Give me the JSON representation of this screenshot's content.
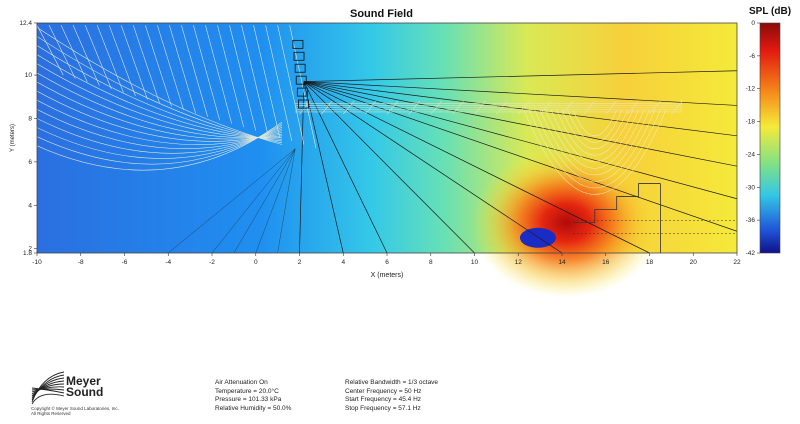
{
  "chart_data": {
    "type": "heatmap",
    "title": "Sound Field",
    "xlabel": "X (meters)",
    "ylabel": "Y (meters)",
    "xlim": [
      -10,
      22
    ],
    "ylim": [
      1.8,
      12.4
    ],
    "x_ticks": [
      "-10",
      "-8",
      "-6",
      "-4",
      "-2",
      "0",
      "2",
      "4",
      "6",
      "8",
      "10",
      "12",
      "14",
      "16",
      "18",
      "20",
      "22"
    ],
    "y_ticks": [
      "12.4",
      "10",
      "8",
      "6",
      "4",
      "2",
      "1.8"
    ],
    "colorbar": {
      "title": "SPL (dB)",
      "ticks": [
        "0",
        "-6",
        "-12",
        "-18",
        "-24",
        "-30",
        "-36",
        "-42"
      ],
      "range": [
        -42,
        0
      ]
    }
  },
  "logo": {
    "line1": "Meyer",
    "line2": "Sound",
    "copyright1": "Copyright © Meyer Sound Laboratories, Inc.",
    "copyright2": "All Rights Reserved"
  },
  "environment": [
    "Air Attenuation On",
    "Temperature = 20.0°C",
    "Pressure = 101.33  kPa",
    "Relative Humidity = 50.0%"
  ],
  "frequency": [
    "Relative Bandwidth = 1/3 octave",
    "Center Frequency = 50 Hz",
    "Start Frequency = 45.4 Hz",
    "Stop Frequency = 57.1 Hz"
  ],
  "colors": {
    "low": "#1a33c8",
    "mid": "#33d6d0",
    "yellow": "#f5ea3a",
    "high": "#e21a10"
  }
}
